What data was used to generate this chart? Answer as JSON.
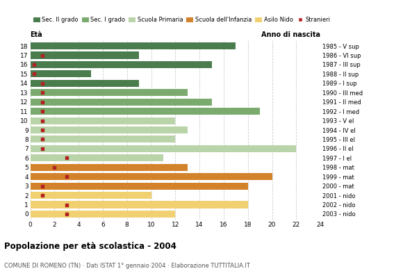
{
  "ages": [
    18,
    17,
    16,
    15,
    14,
    13,
    12,
    11,
    10,
    9,
    8,
    7,
    6,
    5,
    4,
    3,
    2,
    1,
    0
  ],
  "right_labels": [
    "1985 - V sup",
    "1986 - VI sup",
    "1987 - III sup",
    "1988 - II sup",
    "1989 - I sup",
    "1990 - III med",
    "1991 - II med",
    "1992 - I med",
    "1993 - V el",
    "1994 - IV el",
    "1995 - III el",
    "1996 - II el",
    "1997 - I el",
    "1998 - mat",
    "1999 - mat",
    "2000 - mat",
    "2001 - nido",
    "2002 - nido",
    "2003 - nido"
  ],
  "bar_values": [
    17,
    9,
    15,
    5,
    9,
    13,
    15,
    19,
    12,
    13,
    12,
    22,
    11,
    13,
    20,
    18,
    10,
    18,
    12
  ],
  "stranieri": [
    0,
    1,
    0.3,
    0.3,
    1,
    1,
    1,
    1,
    1,
    1,
    1,
    1,
    3,
    2,
    3,
    1,
    1,
    3,
    3
  ],
  "bar_colors": [
    "#4a7c4e",
    "#4a7c4e",
    "#4a7c4e",
    "#4a7c4e",
    "#4a7c4e",
    "#7aaa6d",
    "#7aaa6d",
    "#7aaa6d",
    "#b8d4a8",
    "#b8d4a8",
    "#b8d4a8",
    "#b8d4a8",
    "#b8d4a8",
    "#d2822a",
    "#d2822a",
    "#d2822a",
    "#f0d070",
    "#f0d070",
    "#f0d070"
  ],
  "legend_labels": [
    "Sec. II grado",
    "Sec. I grado",
    "Scuola Primaria",
    "Scuola dell'Infanzia",
    "Asilo Nido",
    "Stranieri"
  ],
  "legend_colors": [
    "#4a7c4e",
    "#7aaa6d",
    "#b8d4a8",
    "#d2822a",
    "#f0d070",
    "#b22222"
  ],
  "title": "Popolazione per età scolastica - 2004",
  "subtitle": "COMUNE DI ROMENO (TN) · Dati ISTAT 1° gennaio 2004 · Elaborazione TUTTITALIA.IT",
  "xlabel_left": "Età",
  "xlabel_right": "Anno di nascita",
  "xlim": [
    0,
    24
  ],
  "xticks": [
    0,
    2,
    4,
    6,
    8,
    10,
    12,
    14,
    16,
    18,
    20,
    22,
    24
  ],
  "stranieri_color": "#b22222",
  "bg_color": "#ffffff",
  "bar_height": 0.75
}
